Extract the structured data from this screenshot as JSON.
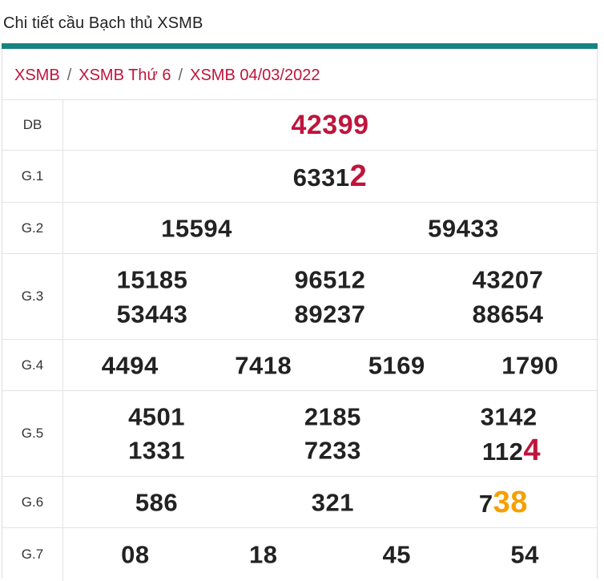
{
  "page_title": "Chi tiết cầu Bạch thủ XSMB",
  "breadcrumb": {
    "item1": "XSMB",
    "item2": "XSMB Thứ 6",
    "item3": "XSMB 04/03/2022",
    "separator": "/"
  },
  "colors": {
    "accent_teal": "#168383",
    "red": "#c0143c",
    "orange": "#f5a000"
  },
  "prizes": {
    "db": {
      "label": "DB",
      "value": "42399"
    },
    "g1": {
      "label": "G.1",
      "prefix": "6331",
      "highlight": "2"
    },
    "g2": {
      "label": "G.2",
      "values": [
        "15594",
        "59433"
      ]
    },
    "g3": {
      "label": "G.3",
      "values": [
        "15185",
        "96512",
        "43207",
        "53443",
        "89237",
        "88654"
      ]
    },
    "g4": {
      "label": "G.4",
      "values": [
        "4494",
        "7418",
        "5169",
        "1790"
      ]
    },
    "g5": {
      "label": "G.5",
      "values": [
        "4501",
        "2185",
        "3142",
        "1331",
        "7233"
      ],
      "last_prefix": "112",
      "last_highlight": "4"
    },
    "g6": {
      "label": "G.6",
      "values": [
        "586",
        "321"
      ],
      "last_prefix": "7",
      "last_highlight": "38"
    },
    "g7": {
      "label": "G.7",
      "values": [
        "08",
        "18",
        "45",
        "54"
      ]
    }
  }
}
